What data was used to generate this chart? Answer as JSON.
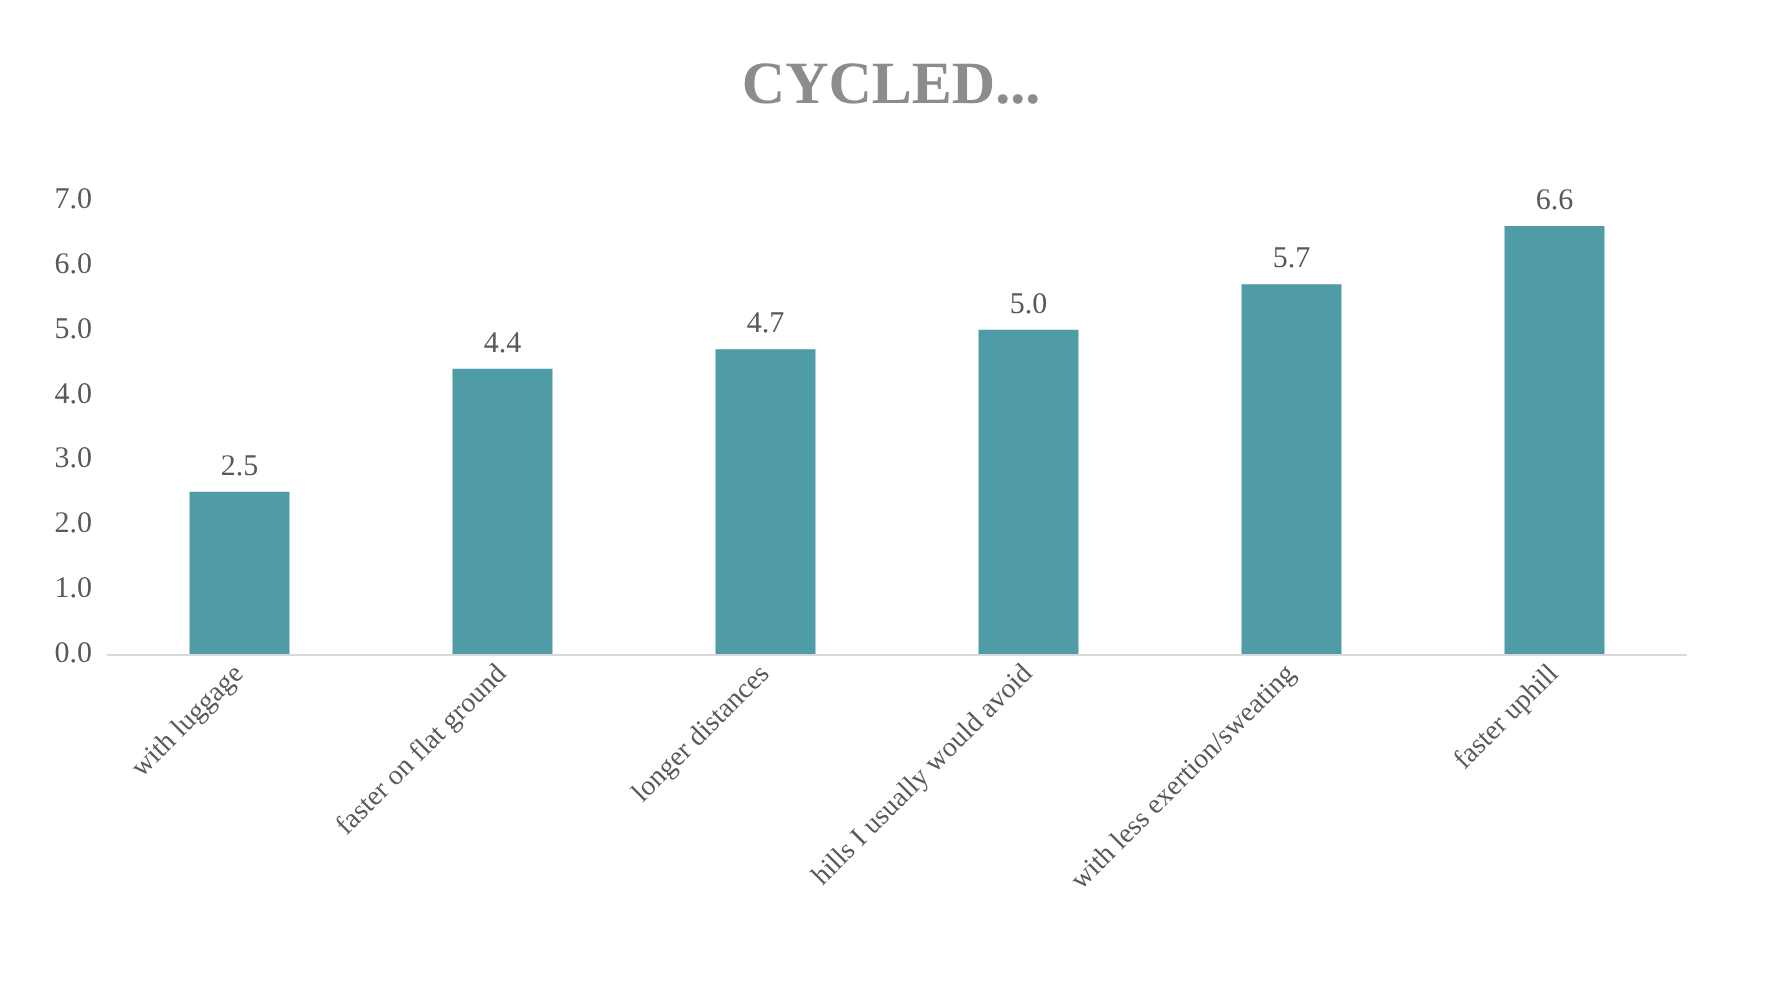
{
  "chart_data": {
    "type": "bar",
    "title": "CYCLED...",
    "categories": [
      "with luggage",
      "faster on flat ground",
      "longer distances",
      "hills I usually would avoid",
      "with less exertion/sweating",
      "faster uphill"
    ],
    "values": [
      2.5,
      4.4,
      4.7,
      5.0,
      5.7,
      6.6
    ],
    "color": "#4f9ba6",
    "ylim": [
      0,
      7
    ],
    "yticks": [
      {
        "value": 0,
        "label": "0.0"
      },
      {
        "value": 1,
        "label": "1.0"
      },
      {
        "value": 2,
        "label": "2.0"
      },
      {
        "value": 3,
        "label": "3.0"
      },
      {
        "value": 4,
        "label": "4.0"
      },
      {
        "value": 5,
        "label": "5.0"
      },
      {
        "value": 6,
        "label": "6.0"
      },
      {
        "value": 7,
        "label": "7.0"
      }
    ],
    "value_labels": [
      "2.5",
      "4.4",
      "4.7",
      "5.0",
      "5.7",
      "6.6"
    ]
  }
}
